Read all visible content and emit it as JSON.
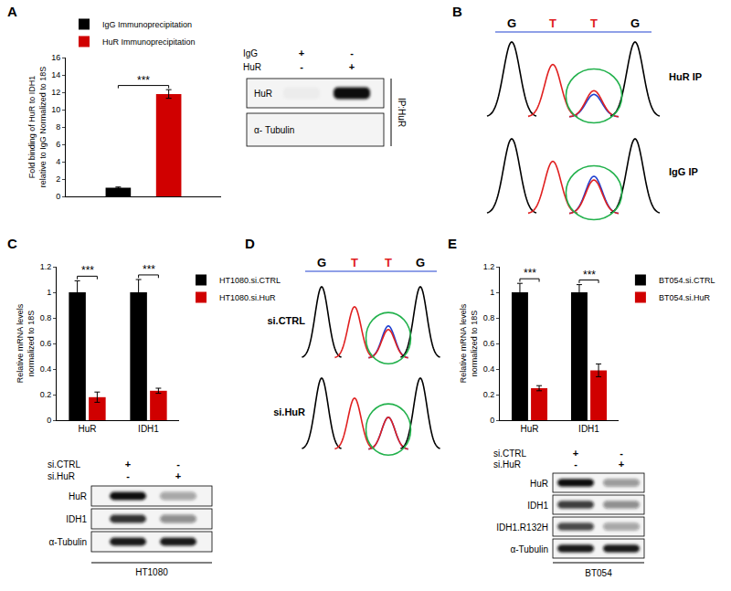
{
  "chart_data": [
    {
      "panel": "A",
      "type": "bar",
      "categories": [
        null
      ],
      "series": [
        {
          "name": "IgG Immunoprecipitation",
          "color": "#000000",
          "values": [
            1.0
          ],
          "errors": [
            0.08
          ]
        },
        {
          "name": "HuR Immunoprecipitation",
          "color": "#d00000",
          "values": [
            11.8
          ],
          "errors": [
            0.5
          ]
        }
      ],
      "ylabel": [
        "Fold binding of HuR to IDH1",
        "relative to IgG Normalized to 18S"
      ],
      "ylim": [
        0,
        16
      ],
      "yticks": [
        0,
        2,
        4,
        6,
        8,
        10,
        12,
        14,
        16
      ],
      "grid": false,
      "legend": "top left",
      "tick_labels": "y",
      "annotations": [
        {
          "text": "***",
          "x": 0
        }
      ]
    },
    {
      "panel": "C",
      "type": "bar",
      "categories": [
        "HuR",
        "IDH1"
      ],
      "series": [
        {
          "name": "HT1080.si.CTRL",
          "color": "#000000",
          "values": [
            1.0,
            1.0
          ],
          "errors": [
            0.09,
            0.1
          ]
        },
        {
          "name": "HT1080.si.HuR",
          "color": "#d00000",
          "values": [
            0.18,
            0.23
          ],
          "errors": [
            0.04,
            0.02
          ]
        }
      ],
      "ylabel": [
        "Relative mRNA levels",
        "normalized to 18S"
      ],
      "ylim": [
        0,
        1.2
      ],
      "yticks": [
        0,
        0.2,
        0.4,
        0.6,
        0.8,
        1,
        1.2
      ],
      "grid": false,
      "legend": "right",
      "annotations": [
        {
          "text": "***",
          "x": 0
        },
        {
          "text": "***",
          "x": 1
        }
      ]
    },
    {
      "panel": "E",
      "type": "bar",
      "categories": [
        "HuR",
        "IDH1"
      ],
      "series": [
        {
          "name": "BT054.si.CTRL",
          "color": "#000000",
          "values": [
            1.0,
            1.0
          ],
          "errors": [
            0.07,
            0.06
          ]
        },
        {
          "name": "BT054.si.HuR",
          "color": "#d00000",
          "values": [
            0.25,
            0.39
          ],
          "errors": [
            0.02,
            0.05
          ]
        }
      ],
      "ylabel": [
        "Relative mRNA levels",
        "normalized to 18S"
      ],
      "ylim": [
        0,
        1.2
      ],
      "yticks": [
        0,
        0.2,
        0.4,
        0.6,
        0.8,
        1,
        1.2
      ],
      "grid": false,
      "legend": "right",
      "annotations": [
        {
          "text": "***",
          "x": 0
        },
        {
          "text": "***",
          "x": 1
        }
      ]
    }
  ],
  "blots": [
    {
      "conditions": [
        {
          "name": "IgG",
          "marks": [
            "+",
            "-"
          ]
        },
        {
          "name": "HuR",
          "marks": [
            "-",
            "+"
          ]
        }
      ],
      "rows": [
        {
          "label": "HuR",
          "bands": [
            0.03,
            1
          ]
        },
        {
          "label": "α- Tubulin",
          "bands": [
            0,
            0
          ]
        }
      ],
      "side_label": "IP:HuR"
    },
    {
      "conditions": [
        {
          "name": "si.CTRL",
          "marks": [
            "+",
            "-"
          ]
        },
        {
          "name": "si.HuR",
          "marks": [
            "-",
            "+"
          ]
        }
      ],
      "rows": [
        {
          "label": "HuR",
          "bands": [
            1,
            0.35
          ]
        },
        {
          "label": "IDH1",
          "bands": [
            0.85,
            0.45
          ]
        },
        {
          "label": "α-Tubulin",
          "bands": [
            0.95,
            0.95
          ]
        }
      ],
      "cell_line": "HT1080"
    },
    {
      "conditions": [
        {
          "name": "si.CTRL",
          "marks": [
            "+",
            "-"
          ]
        },
        {
          "name": "si.HuR",
          "marks": [
            "-",
            "+"
          ]
        }
      ],
      "rows": [
        {
          "label": "HuR",
          "bands": [
            1,
            0.4
          ]
        },
        {
          "label": "IDH1",
          "bands": [
            0.8,
            0.45
          ]
        },
        {
          "label": "IDH1.R132H",
          "bands": [
            0.75,
            0.35
          ]
        },
        {
          "label": "α-Tubulin",
          "bands": [
            0.95,
            0.95
          ]
        }
      ],
      "cell_line": "BT054"
    }
  ],
  "chromatograms": [
    {
      "panel": "B",
      "sequence": [
        "G",
        "T",
        "T",
        "G"
      ],
      "colors": {
        "G": "#000000",
        "T": "#e02020",
        "C": "#2040d0"
      },
      "highlight": 2,
      "samples": [
        {
          "label": "HuR IP",
          "peaks": [
            {
              "G": 1
            },
            {
              "T": 0.7
            },
            {
              "C": 0.3,
              "T": 0.35
            },
            {
              "G": 1
            }
          ]
        },
        {
          "label": "IgG IP",
          "peaks": [
            {
              "G": 1
            },
            {
              "T": 0.7
            },
            {
              "C": 0.5,
              "T": 0.45
            },
            {
              "G": 1
            }
          ]
        }
      ]
    },
    {
      "panel": "D",
      "sequence": [
        "G",
        "T",
        "T",
        "G"
      ],
      "colors": {
        "G": "#000000",
        "T": "#e02020",
        "C": "#2040d0"
      },
      "highlight": 2,
      "samples": [
        {
          "label": "si.CTRL",
          "peaks": [
            {
              "G": 1
            },
            {
              "T": 0.72
            },
            {
              "C": 0.45,
              "T": 0.4
            },
            {
              "G": 1
            }
          ]
        },
        {
          "label": "si.HuR",
          "peaks": [
            {
              "G": 1
            },
            {
              "T": 0.72
            },
            {
              "C": 0.45,
              "T": 0.45
            },
            {
              "G": 1
            }
          ]
        }
      ]
    }
  ]
}
